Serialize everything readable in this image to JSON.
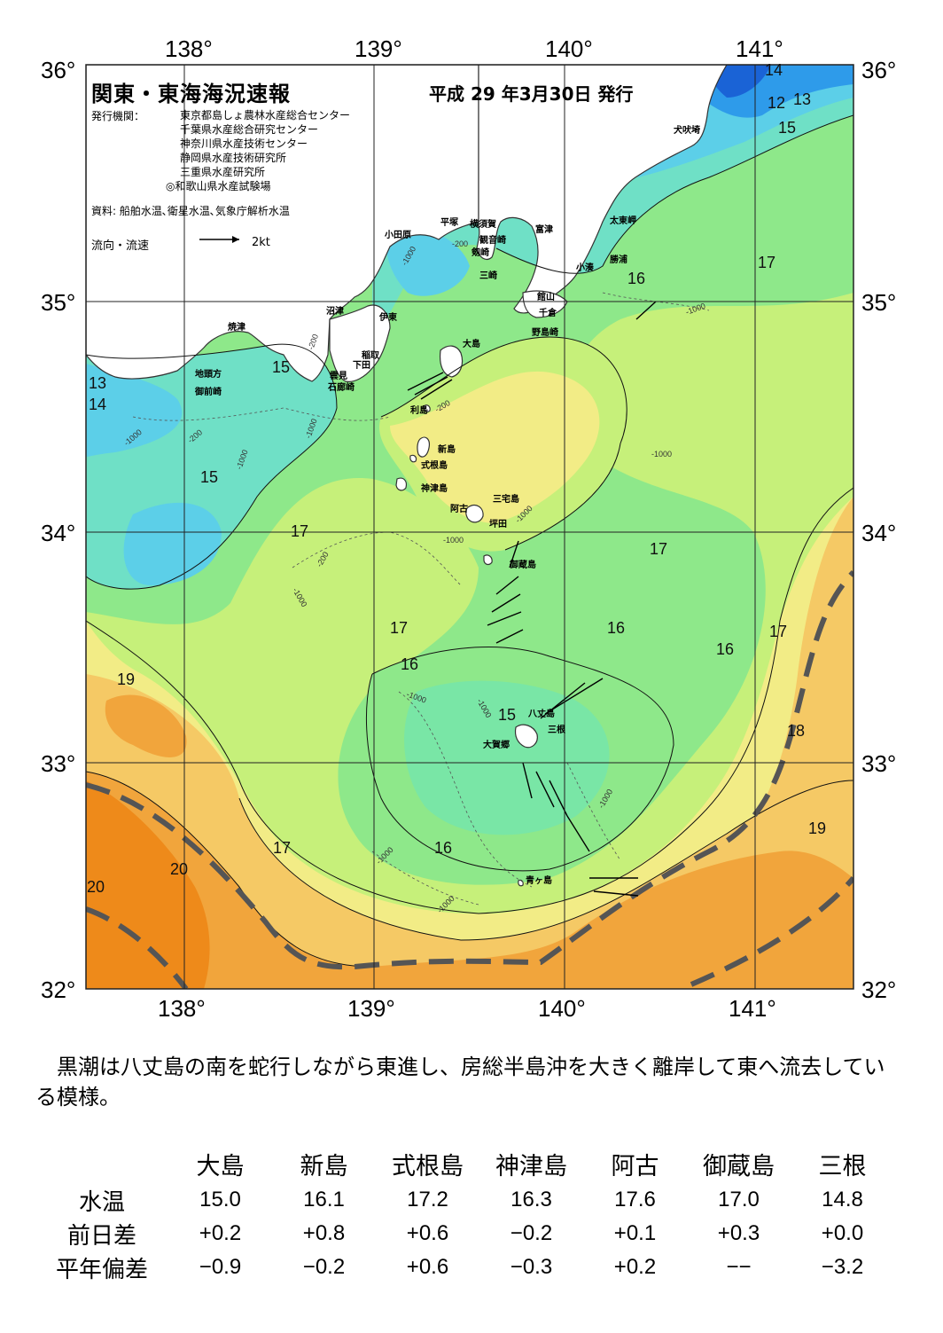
{
  "header": {
    "title": "関東・東海海況速報",
    "issue_date": "平成 29 年3月30日 発行",
    "publisher_label": "発行機関：",
    "publishers": [
      "東京都島しょ農林水産総合センター",
      "千葉県水産総合研究センター",
      "神奈川県水産技術センター",
      "静岡県水産技術研究所",
      "三重県水産研究所",
      "◎和歌山県水産試験場"
    ],
    "sources": "資料: 船舶水温､衛星水温､気象庁解析水温",
    "flow_label": "流向・流速",
    "flow_scale": "2kt"
  },
  "axes": {
    "lon_top": [
      "138°",
      "139°",
      "140°",
      "141°"
    ],
    "lon_bottom": [
      "138°",
      "139°",
      "140°",
      "141°"
    ],
    "lat_left": [
      "36°",
      "35°",
      "34°",
      "33°",
      "32°"
    ],
    "lat_right": [
      "36°",
      "35°",
      "34°",
      "33°",
      "32°"
    ]
  },
  "place_names": {
    "inubozaki": "犬吠埼",
    "taitozaki": "太東岬",
    "katsuura": "勝浦",
    "kominato": "小湊",
    "odawara": "小田原",
    "hiratsuka": "平塚",
    "yokosuka": "横須賀",
    "kannonzaki": "観音崎",
    "futtsu": "富津",
    "tsurugizaki": "剱崎",
    "misaki": "三崎",
    "tateyama": "館山",
    "chikura": "千倉",
    "nojimazaki": "野島崎",
    "numazu": "沼津",
    "ito": "伊東",
    "yaizu": "焼津",
    "inatori": "稲取",
    "shimoda": "下田",
    "kumomi": "雲見",
    "irozaki": "石廊崎",
    "jitokata": "地頭方",
    "omaezaki": "御前崎",
    "oshima": "大島",
    "toshima": "利島",
    "niijima": "新島",
    "shikinejima": "式根島",
    "kozushima": "神津島",
    "miyakejima": "三宅島",
    "ako": "阿古",
    "tsubota": "坪田",
    "mikurajima": "御蔵島",
    "hachijojima": "八丈島",
    "sanne": "三根",
    "okago": "大賀郷",
    "aogashima": "青ヶ島"
  },
  "isotherm_labels": [
    "14",
    "12",
    "13",
    "15",
    "16",
    "17",
    "13",
    "14",
    "15",
    "15",
    "17",
    "17",
    "17",
    "16",
    "16",
    "16",
    "17",
    "19",
    "15",
    "18",
    "19",
    "17",
    "16",
    "20",
    "20"
  ],
  "depth_labels": [
    "-200",
    "-1000",
    "-1000",
    "-200",
    "-1000",
    "-200",
    "-1000",
    "-200",
    "-1000",
    "-1000",
    "-200",
    "-1000",
    "-1000",
    "-1000",
    "-1000",
    "-1000",
    "-1000",
    "-1000",
    "-1000"
  ],
  "colors": {
    "land": "#ffffff",
    "t12": "#1a63d6",
    "t13": "#2e9bea",
    "t14": "#5ccfe8",
    "t15": "#6fe0c6",
    "t16": "#8ee88a",
    "t17": "#c6f07a",
    "t18": "#f2ec86",
    "t19": "#f5c965",
    "t20": "#f1a53c",
    "t21": "#ee8a1a",
    "kuroshio_axis": "#555555",
    "grid": "#222222"
  },
  "summary": "黒潮は八丈島の南を蛇行しながら東進し、房総半島沖を大きく離岸して東へ流去している模様。",
  "table": {
    "headers": [
      "",
      "大島",
      "新島",
      "式根島",
      "神津島",
      "阿古",
      "御蔵島",
      "三根"
    ],
    "rows": [
      {
        "label": "水温",
        "values": [
          "15.0",
          "16.1",
          "17.2",
          "16.3",
          "17.6",
          "17.0",
          "14.8"
        ]
      },
      {
        "label": "前日差",
        "values": [
          "+0.2",
          "+0.8",
          "+0.6",
          "−0.2",
          "+0.1",
          "+0.3",
          "+0.0"
        ]
      },
      {
        "label": "平年偏差",
        "values": [
          "−0.9",
          "−0.2",
          "+0.6",
          "−0.3",
          "+0.2",
          "−−",
          "−3.2"
        ]
      }
    ]
  }
}
